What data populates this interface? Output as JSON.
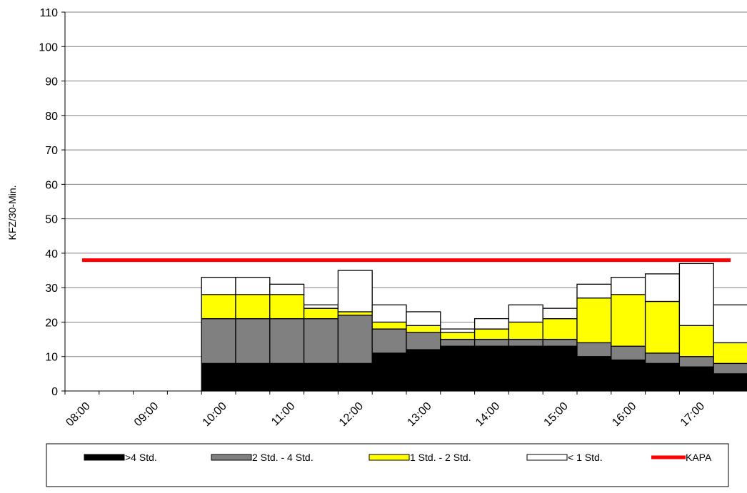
{
  "chart_data": {
    "type": "bar",
    "stacked": true,
    "title": "",
    "xlabel": "",
    "ylabel": "KFZ/30-Min.",
    "ylim": [
      0,
      110
    ],
    "yticks": [
      0,
      10,
      20,
      30,
      40,
      50,
      60,
      70,
      80,
      90,
      100,
      110
    ],
    "grid": true,
    "legend_position": "bottom",
    "x_tick_labels": [
      "08:00",
      "09:00",
      "10:00",
      "11:00",
      "12:00",
      "13:00",
      "14:00",
      "15:00",
      "16:00",
      "17:00"
    ],
    "categories": [
      "08:00",
      "08:30",
      "09:00",
      "09:30",
      "10:00",
      "10:30",
      "11:00",
      "11:30",
      "12:00",
      "12:30",
      "13:00",
      "13:30",
      "14:00",
      "14:30",
      "15:00",
      "15:30",
      "16:00",
      "16:30",
      "17:00",
      "17:30"
    ],
    "series": [
      {
        "name": ">4 Std.",
        "color": "#000000",
        "values": [
          0,
          0,
          0,
          0,
          8,
          8,
          8,
          8,
          8,
          11,
          12,
          13,
          13,
          13,
          13,
          10,
          9,
          8,
          7,
          5
        ]
      },
      {
        "name": "2 Std. - 4 Std.",
        "color": "#808080",
        "values": [
          0,
          0,
          0,
          0,
          13,
          13,
          13,
          13,
          14,
          7,
          5,
          2,
          2,
          2,
          2,
          4,
          4,
          3,
          3,
          3
        ]
      },
      {
        "name": "1 Std. - 2 Std.",
        "color": "#ffff00",
        "values": [
          0,
          0,
          0,
          0,
          7,
          7,
          7,
          3,
          1,
          2,
          2,
          2,
          3,
          5,
          6,
          13,
          15,
          15,
          9,
          6
        ]
      },
      {
        "name": "< 1 Std.",
        "color": "#ffffff",
        "values": [
          0,
          0,
          0,
          0,
          5,
          5,
          3,
          1,
          12,
          5,
          4,
          1,
          3,
          5,
          3,
          4,
          5,
          8,
          18,
          11
        ]
      }
    ],
    "kapa": {
      "name": "KAPA",
      "color": "#ff0000",
      "value": 38
    }
  }
}
